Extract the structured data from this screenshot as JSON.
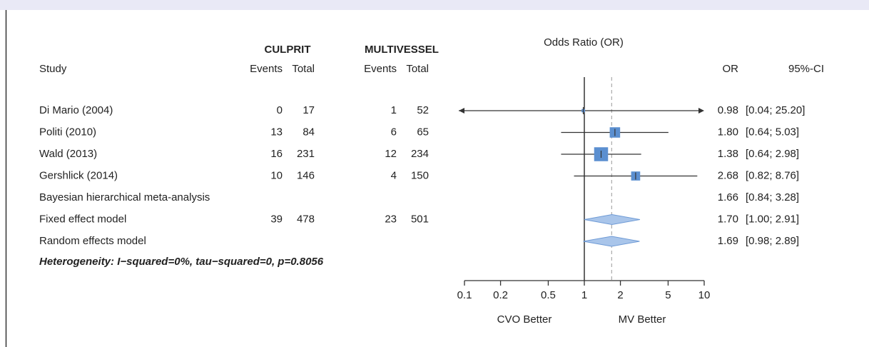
{
  "chart_data": {
    "type": "forest",
    "title": "Odds Ratio (OR)",
    "group_headers": [
      "CULPRIT",
      "MULTIVESSEL"
    ],
    "columns": [
      "Study",
      "Events",
      "Total",
      "Events",
      "Total",
      "OR",
      "95%-CI"
    ],
    "rows": [
      {
        "label": "Di Mario (2004)",
        "culprit_events": 0,
        "culprit_total": 17,
        "mv_events": 1,
        "mv_total": 52,
        "or": 0.98,
        "or_label": "0.98",
        "lower": 0.04,
        "upper": 25.2,
        "ci_label": "[0.04; 25.20]",
        "marker": "square"
      },
      {
        "label": "Politi (2010)",
        "culprit_events": 13,
        "culprit_total": 84,
        "mv_events": 6,
        "mv_total": 65,
        "or": 1.8,
        "or_label": "1.80",
        "lower": 0.64,
        "upper": 5.03,
        "ci_label": "[0.64; 5.03]",
        "marker": "square"
      },
      {
        "label": "Wald (2013)",
        "culprit_events": 16,
        "culprit_total": 231,
        "mv_events": 12,
        "mv_total": 234,
        "or": 1.38,
        "or_label": "1.38",
        "lower": 0.64,
        "upper": 2.98,
        "ci_label": "[0.64; 2.98]",
        "marker": "square"
      },
      {
        "label": "Gershlick (2014)",
        "culprit_events": 10,
        "culprit_total": 146,
        "mv_events": 4,
        "mv_total": 150,
        "or": 2.68,
        "or_label": "2.68",
        "lower": 0.82,
        "upper": 8.76,
        "ci_label": "[0.82; 8.76]",
        "marker": "square"
      },
      {
        "label": "Bayesian hierarchical meta-analysis",
        "or": 1.66,
        "or_label": "1.66",
        "lower": 0.84,
        "upper": 3.28,
        "ci_label": "[0.84; 3.28]",
        "color": "#e8473b"
      },
      {
        "label": "Fixed effect model",
        "culprit_events": 39,
        "culprit_total": 478,
        "mv_events": 23,
        "mv_total": 501,
        "or": 1.7,
        "or_label": "1.70",
        "lower": 1.0,
        "upper": 2.91,
        "ci_label": "[1.00; 2.91]",
        "marker": "diamond"
      },
      {
        "label": "Random effects model",
        "or": 1.69,
        "or_label": "1.69",
        "lower": 0.98,
        "upper": 2.89,
        "ci_label": "[0.98; 2.89]",
        "marker": "diamond"
      }
    ],
    "heterogeneity": "Heterogeneity: I−squared=0%, tau−squared=0, p=0.8056",
    "log_scale": true,
    "xlim": [
      0.1,
      10
    ],
    "xticks": [
      0.1,
      0.2,
      0.5,
      1,
      2,
      5,
      10
    ],
    "reference_line": 1,
    "dashed_line": 1.69,
    "x_labels": [
      "CVO Better",
      "MV Better"
    ],
    "square_color": "#5b8fd0",
    "diamond_color": "#a9c5ea"
  }
}
